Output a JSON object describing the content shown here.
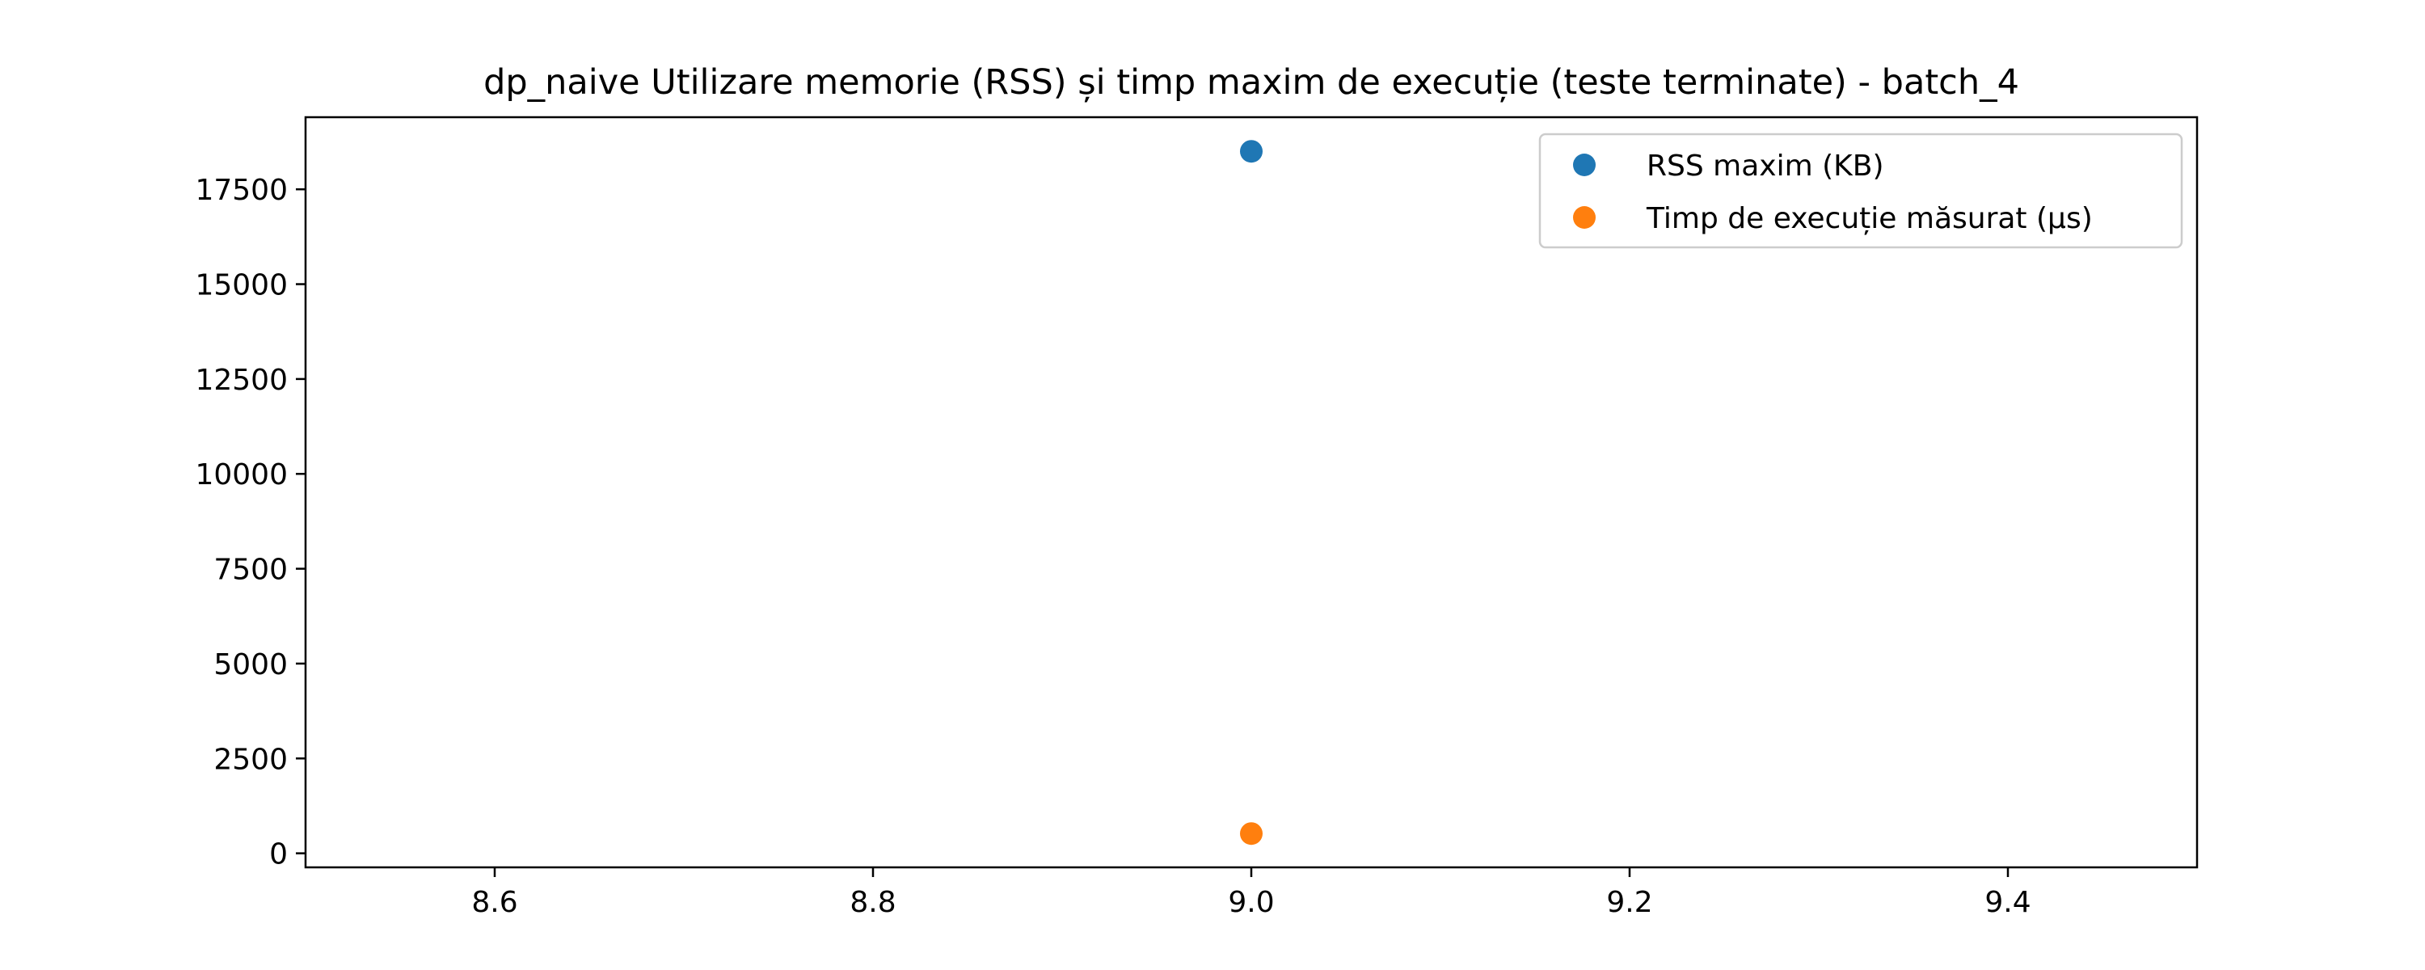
{
  "chart_data": {
    "type": "scatter",
    "title": "dp_naive Utilizare memorie (RSS) și timp maxim de execuție (teste terminate) - batch_4",
    "xlabel": "",
    "ylabel": "",
    "xlim": [
      8.5,
      9.5
    ],
    "ylim": [
      -370,
      19400
    ],
    "x_ticks": [
      8.6,
      8.8,
      9.0,
      9.2,
      9.4
    ],
    "x_tick_labels": [
      "8.6",
      "8.8",
      "9.0",
      "9.2",
      "9.4"
    ],
    "y_ticks": [
      0,
      2500,
      5000,
      7500,
      10000,
      12500,
      15000,
      17500
    ],
    "y_tick_labels": [
      "0",
      "2500",
      "5000",
      "7500",
      "10000",
      "12500",
      "15000",
      "17500"
    ],
    "grid": false,
    "legend_position": "top-right",
    "series": [
      {
        "name": "RSS maxim (KB)",
        "color": "#1f77b4",
        "points": [
          {
            "x": 9.0,
            "y": 18500
          }
        ]
      },
      {
        "name": "Timp de execuție măsurat (µs)",
        "color": "#ff7f0e",
        "points": [
          {
            "x": 9.0,
            "y": 520
          }
        ]
      }
    ]
  }
}
